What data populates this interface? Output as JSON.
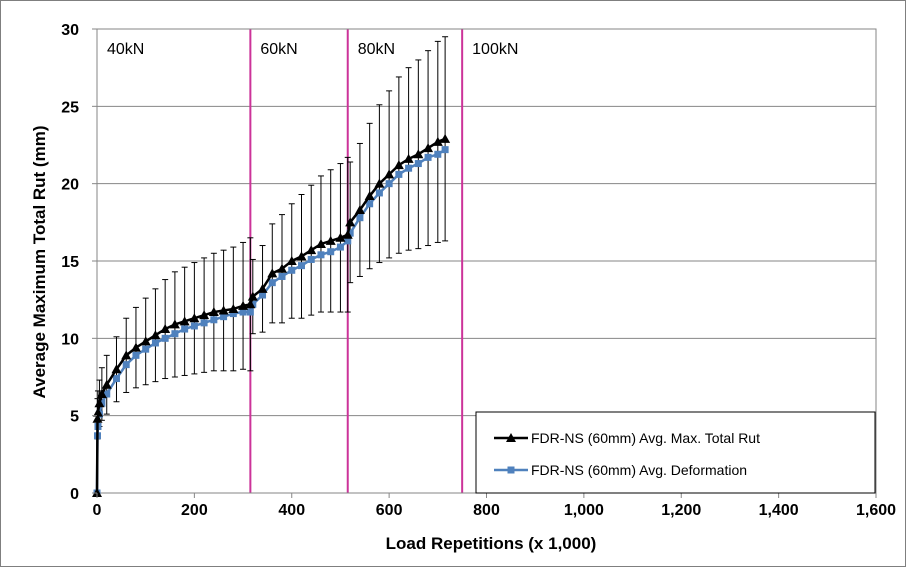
{
  "chart_data": {
    "type": "line",
    "xlabel": "Load Repetitions (x 1,000)",
    "ylabel": "Average Maximum Total Rut (mm)",
    "xlim": [
      0,
      1600
    ],
    "ylim": [
      0,
      30
    ],
    "x_ticks": [
      0,
      200,
      400,
      600,
      800,
      1000,
      1200,
      1400,
      1600
    ],
    "x_tick_labels": [
      "0",
      "200",
      "400",
      "600",
      "800",
      "1,000",
      "1,200",
      "1,400",
      "1,600"
    ],
    "y_ticks": [
      0,
      5,
      10,
      15,
      20,
      25,
      30
    ],
    "y_tick_labels": [
      "0",
      "5",
      "10",
      "15",
      "20",
      "25",
      "30"
    ],
    "grid": "horizontal",
    "legend_position": "bottom-right",
    "load_zones": [
      {
        "label": "40kN",
        "start": 0
      },
      {
        "label": "60kN",
        "start": 315
      },
      {
        "label": "80kN",
        "start": 515
      },
      {
        "label": "100kN",
        "start": 750
      }
    ],
    "zone_line_color": "#cc3399",
    "series": [
      {
        "name": "FDR-NS (60mm) Avg. Max. Total Rut",
        "color": "#000000",
        "marker": "triangle",
        "x": [
          0,
          1,
          2,
          5,
          10,
          20,
          40,
          60,
          80,
          100,
          120,
          140,
          160,
          180,
          200,
          220,
          240,
          260,
          280,
          300,
          315,
          320,
          340,
          360,
          380,
          400,
          420,
          440,
          460,
          480,
          500,
          515,
          520,
          540,
          560,
          580,
          600,
          620,
          640,
          660,
          680,
          700,
          715
        ],
        "y": [
          0,
          4.8,
          5.2,
          5.8,
          6.4,
          7.0,
          8.0,
          8.9,
          9.4,
          9.8,
          10.2,
          10.6,
          10.9,
          11.1,
          11.3,
          11.5,
          11.7,
          11.8,
          11.9,
          12.1,
          12.2,
          12.7,
          13.2,
          14.2,
          14.5,
          15.0,
          15.3,
          15.7,
          16.1,
          16.3,
          16.5,
          16.7,
          17.5,
          18.3,
          19.2,
          20.0,
          20.6,
          21.2,
          21.6,
          21.9,
          22.3,
          22.7,
          22.9
        ],
        "error": [
          0,
          1.3,
          1.4,
          1.5,
          1.7,
          1.9,
          2.1,
          2.4,
          2.6,
          2.8,
          3.0,
          3.2,
          3.4,
          3.5,
          3.6,
          3.7,
          3.8,
          3.9,
          4.0,
          4.1,
          4.3,
          2.4,
          2.8,
          3.2,
          3.5,
          3.7,
          4.0,
          4.2,
          4.4,
          4.6,
          4.8,
          5.0,
          3.9,
          4.3,
          4.7,
          5.1,
          5.4,
          5.7,
          5.9,
          6.1,
          6.3,
          6.5,
          6.6
        ]
      },
      {
        "name": "FDR-NS (60mm) Avg. Deformation",
        "color": "#4f81bd",
        "marker": "square",
        "x": [
          0,
          1,
          2,
          5,
          10,
          20,
          40,
          60,
          80,
          100,
          120,
          140,
          160,
          180,
          200,
          220,
          240,
          260,
          280,
          300,
          315,
          320,
          340,
          360,
          380,
          400,
          420,
          440,
          460,
          480,
          500,
          515,
          520,
          540,
          560,
          580,
          600,
          620,
          640,
          660,
          680,
          700,
          715
        ],
        "y": [
          0,
          3.7,
          4.3,
          5.1,
          5.8,
          6.4,
          7.4,
          8.3,
          8.9,
          9.3,
          9.7,
          10.0,
          10.3,
          10.6,
          10.8,
          11.0,
          11.2,
          11.4,
          11.6,
          11.7,
          11.7,
          12.2,
          12.8,
          13.6,
          14.0,
          14.4,
          14.7,
          15.1,
          15.4,
          15.6,
          15.9,
          16.3,
          16.8,
          17.8,
          18.7,
          19.4,
          20.0,
          20.6,
          21.0,
          21.3,
          21.7,
          21.9,
          22.2
        ]
      }
    ]
  }
}
